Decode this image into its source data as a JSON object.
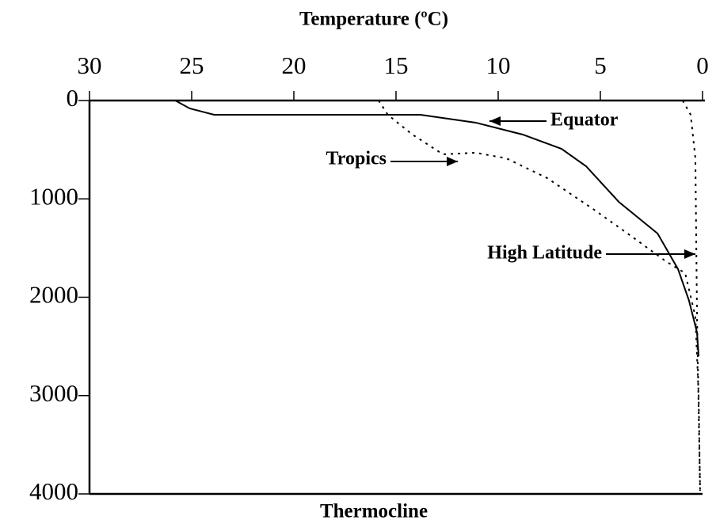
{
  "chart_data": {
    "type": "line",
    "title": "Temperature (ºC)",
    "xlabel": "Thermocline",
    "xlim": [
      30,
      0
    ],
    "xticks": [
      30,
      25,
      20,
      15,
      10,
      5,
      0
    ],
    "ylim": [
      0,
      4000
    ],
    "yticks": [
      0,
      1000,
      2000,
      3000,
      4000
    ],
    "y_inverted": true,
    "series": [
      {
        "name": "Equator",
        "color": "#000000",
        "dashed": false,
        "x": [
          25.8,
          25.1,
          23.9,
          13.8,
          11.1,
          8.8,
          6.9,
          5.7,
          4.1,
          2.2,
          1.2,
          0.66,
          0.27,
          0.19
        ],
        "values": [
          0,
          80,
          145,
          145,
          225,
          346,
          491,
          668,
          1030,
          1352,
          1714,
          2036,
          2358,
          2600
        ]
      },
      {
        "name": "Tropics",
        "color": "#000000",
        "dashed": true,
        "x": [
          15.85,
          15.4,
          14.2,
          12.7,
          11.1,
          9.6,
          7.6,
          5.3,
          3.4,
          1.8,
          0.85,
          0.35,
          0.19,
          0.12
        ],
        "values": [
          0,
          145,
          346,
          547,
          531,
          588,
          789,
          1111,
          1392,
          1634,
          1755,
          2197,
          3002,
          3968
        ]
      },
      {
        "name": "High Latitude",
        "color": "#000000",
        "dashed": true,
        "x": [
          0.97,
          0.58,
          0.35,
          0.27,
          0.12
        ],
        "values": [
          0,
          145,
          588,
          2197,
          3968
        ]
      }
    ]
  }
}
